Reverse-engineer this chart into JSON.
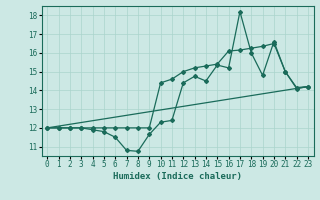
{
  "xlabel": "Humidex (Indice chaleur)",
  "bg_color": "#cce8e4",
  "grid_color": "#aad4cc",
  "line_color": "#1a6b5a",
  "xlim": [
    -0.5,
    23.5
  ],
  "ylim": [
    10.5,
    18.5
  ],
  "yticks": [
    11,
    12,
    13,
    14,
    15,
    16,
    17,
    18
  ],
  "xticks": [
    0,
    1,
    2,
    3,
    4,
    5,
    6,
    7,
    8,
    9,
    10,
    11,
    12,
    13,
    14,
    15,
    16,
    17,
    18,
    19,
    20,
    21,
    22,
    23
  ],
  "series1_x": [
    0,
    1,
    2,
    3,
    4,
    5,
    6,
    7,
    8,
    9,
    10,
    11,
    12,
    13,
    14,
    15,
    16,
    17,
    18,
    19,
    20,
    21,
    22,
    23
  ],
  "series1_y": [
    12.0,
    12.0,
    12.0,
    12.0,
    11.9,
    11.8,
    11.5,
    10.8,
    10.75,
    11.65,
    12.3,
    12.4,
    14.4,
    14.75,
    14.5,
    15.35,
    15.2,
    18.2,
    16.0,
    14.8,
    16.6,
    15.0,
    14.1,
    14.2
  ],
  "series2_x": [
    0,
    1,
    2,
    3,
    4,
    5,
    6,
    7,
    8,
    9,
    10,
    11,
    12,
    13,
    14,
    15,
    16,
    17,
    18,
    19,
    20,
    21,
    22,
    23
  ],
  "series2_y": [
    12.0,
    12.0,
    12.0,
    12.0,
    12.0,
    12.0,
    12.0,
    12.0,
    12.0,
    12.0,
    14.4,
    14.6,
    15.0,
    15.2,
    15.3,
    15.4,
    16.1,
    16.15,
    16.25,
    16.35,
    16.5,
    15.0,
    14.15,
    14.2
  ],
  "series3_x": [
    0,
    23
  ],
  "series3_y": [
    12.0,
    14.2
  ]
}
